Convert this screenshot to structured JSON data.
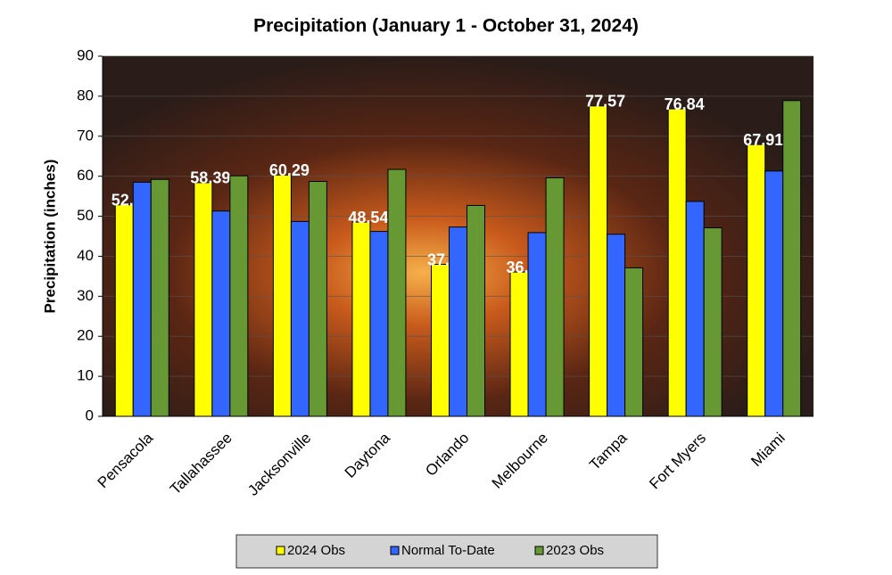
{
  "chart_data": {
    "type": "bar",
    "title": "Precipitation (January 1 - October 31, 2024)",
    "y_label": "Precipitation (inches)",
    "categories": [
      "Pensacola",
      "Tallahassee",
      "Jacksonville",
      "Daytona",
      "Orlando",
      "Melbourne",
      "Tampa",
      "Fort Myers",
      "Miami"
    ],
    "series": [
      {
        "name": "2024 Obs",
        "color": "#ffff00",
        "values": [
          52.85,
          58.39,
          60.29,
          48.54,
          37.98,
          36.06,
          77.57,
          76.84,
          67.91
        ],
        "data_labels": true
      },
      {
        "name": "Normal To-Date",
        "color": "#3366ff",
        "values": [
          58.5,
          51.3,
          48.7,
          46.2,
          47.3,
          45.9,
          45.5,
          53.7,
          61.3
        ]
      },
      {
        "name": "2023 Obs",
        "color": "#669933",
        "values": [
          59.2,
          60.1,
          58.7,
          61.7,
          52.7,
          59.6,
          37.1,
          47.1,
          78.9
        ]
      }
    ],
    "ylim": [
      0,
      90
    ],
    "yticks": [
      0,
      10,
      20,
      30,
      40,
      50,
      60,
      70,
      80,
      90
    ],
    "grid": true,
    "legend": "bottom"
  }
}
